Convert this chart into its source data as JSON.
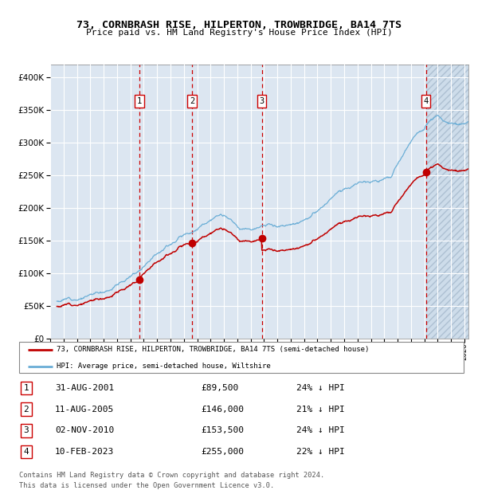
{
  "title": "73, CORNBRASH RISE, HILPERTON, TROWBRIDGE, BA14 7TS",
  "subtitle": "Price paid vs. HM Land Registry's House Price Index (HPI)",
  "legend_line1": "73, CORNBRASH RISE, HILPERTON, TROWBRIDGE, BA14 7TS (semi-detached house)",
  "legend_line2": "HPI: Average price, semi-detached house, Wiltshire",
  "footnote1": "Contains HM Land Registry data © Crown copyright and database right 2024.",
  "footnote2": "This data is licensed under the Open Government Licence v3.0.",
  "sales": [
    {
      "num": 1,
      "date": "31-AUG-2001",
      "price": 89500,
      "pct": "24% ↓ HPI"
    },
    {
      "num": 2,
      "date": "11-AUG-2005",
      "price": 146000,
      "pct": "21% ↓ HPI"
    },
    {
      "num": 3,
      "date": "02-NOV-2010",
      "price": 153500,
      "pct": "24% ↓ HPI"
    },
    {
      "num": 4,
      "date": "10-FEB-2023",
      "price": 255000,
      "pct": "22% ↓ HPI"
    }
  ],
  "sale_dates_decimal": [
    2001.664,
    2005.607,
    2010.836,
    2023.111
  ],
  "hpi_color": "#6baed6",
  "price_color": "#c00000",
  "background_color": "#dce6f1",
  "grid_color": "#ffffff",
  "vline_color": "#ff0000",
  "ylim": [
    0,
    420000
  ],
  "yticks": [
    0,
    50000,
    100000,
    150000,
    200000,
    250000,
    300000,
    350000,
    400000
  ],
  "xstart": 1995.5,
  "xend": 2026.3,
  "xticks": [
    1995,
    1996,
    1997,
    1998,
    1999,
    2000,
    2001,
    2002,
    2003,
    2004,
    2005,
    2006,
    2007,
    2008,
    2009,
    2010,
    2011,
    2012,
    2013,
    2014,
    2015,
    2016,
    2017,
    2018,
    2019,
    2020,
    2021,
    2022,
    2023,
    2024,
    2025,
    2026
  ]
}
